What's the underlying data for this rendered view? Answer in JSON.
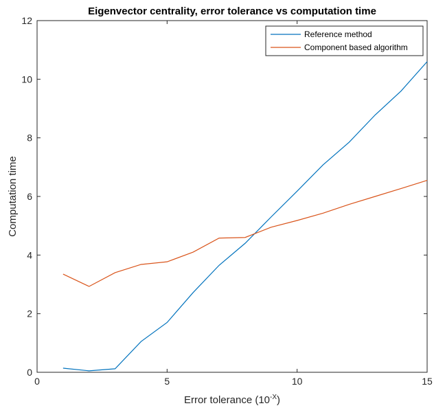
{
  "chart_data": {
    "type": "line",
    "title": "Eigenvector centrality, error tolerance vs computation time",
    "xlabel_prefix": "Error tolerance (10",
    "xlabel_superscript": "-X",
    "xlabel_suffix": ")",
    "ylabel": "Computation time",
    "xlim": [
      0,
      15
    ],
    "ylim": [
      0,
      12
    ],
    "xticks": [
      0,
      5,
      10,
      15
    ],
    "yticks": [
      0,
      2,
      4,
      6,
      8,
      10,
      12
    ],
    "grid": false,
    "legend_position": "top-right",
    "x": [
      1,
      2,
      3,
      4,
      5,
      6,
      7,
      8,
      9,
      10,
      11,
      12,
      13,
      14,
      15
    ],
    "series": [
      {
        "name": "Reference method",
        "color": "#0072BD",
        "values": [
          0.14,
          0.05,
          0.12,
          1.05,
          1.7,
          2.72,
          3.65,
          4.4,
          5.3,
          6.18,
          7.08,
          7.85,
          8.78,
          9.6,
          10.6
        ]
      },
      {
        "name": "Component based algorithm",
        "color": "#D95319",
        "values": [
          3.35,
          2.93,
          3.4,
          3.68,
          3.77,
          4.1,
          4.58,
          4.6,
          4.95,
          5.18,
          5.43,
          5.73,
          6.0,
          6.27,
          6.55
        ]
      }
    ]
  }
}
